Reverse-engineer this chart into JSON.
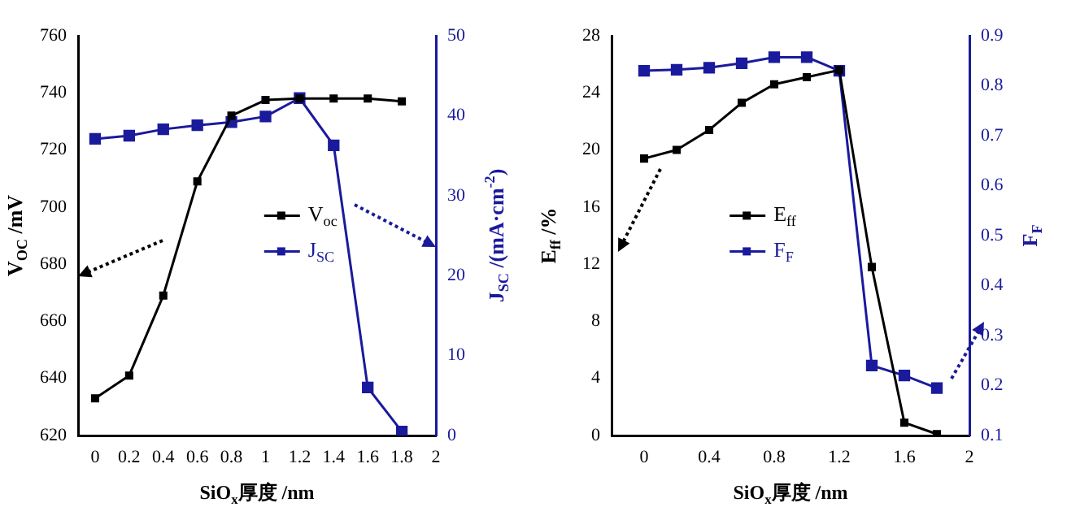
{
  "chart_data": [
    {
      "type": "line",
      "xlabel": "SiO$_{x}$厚度 /nm",
      "ylabel": "V$_{OC}$ /mV",
      "y2label": "J$_{SC}$ /(mA·cm$^{-2}$)",
      "x": [
        0,
        0.2,
        0.4,
        0.6,
        0.8,
        1.0,
        1.2,
        1.4,
        1.6,
        1.8
      ],
      "series": [
        {
          "name": "V$_{oc}$",
          "color": "#000000",
          "values": [
            633,
            641,
            669,
            709,
            732,
            737.5,
            738,
            738,
            738,
            737
          ]
        },
        {
          "name": "J$_{SC}$",
          "color": "#1a1a9c",
          "axis": "y2",
          "values": [
            37.1,
            37.5,
            38.3,
            38.8,
            39.2,
            39.9,
            42.2,
            36.3,
            6,
            0.5
          ]
        }
      ],
      "xlim": [
        -0.1,
        2.0
      ],
      "xticks": [
        0,
        0.2,
        0.4,
        0.6,
        0.8,
        1.0,
        1.2,
        1.4,
        1.6,
        1.8,
        2.0
      ],
      "ylim": [
        620,
        760
      ],
      "yticks": [
        620,
        640,
        660,
        680,
        700,
        720,
        740,
        760
      ],
      "y2lim": [
        0,
        50
      ],
      "y2ticks": [
        0,
        10,
        20,
        30,
        40,
        50
      ],
      "legend": "center",
      "marker": "square",
      "line_style": "solid",
      "grid": false
    },
    {
      "type": "line",
      "xlabel": "SiO$_{x}$厚度 /nm",
      "ylabel": "E$_{ff}$ /%",
      "y2label": "F$_{F}$",
      "x": [
        0,
        0.2,
        0.4,
        0.6,
        0.8,
        1.0,
        1.2,
        1.4,
        1.6,
        1.8
      ],
      "series": [
        {
          "name": "E$_{ff}$",
          "color": "#000000",
          "values": [
            19.4,
            20,
            21.4,
            23.3,
            24.6,
            25.1,
            25.6,
            11.8,
            0.9,
            0.1
          ]
        },
        {
          "name": "F$_{F}$",
          "color": "#1a1a9c",
          "axis": "y2",
          "values": [
            0.83,
            0.832,
            0.836,
            0.845,
            0.857,
            0.857,
            0.83,
            0.24,
            0.22,
            0.195
          ]
        }
      ],
      "xlim": [
        -0.2,
        2.0
      ],
      "xticks": [
        0,
        0.4,
        0.8,
        1.2,
        1.6,
        2.0
      ],
      "ylim": [
        0,
        28
      ],
      "yticks": [
        0,
        4,
        8,
        12,
        16,
        20,
        24,
        28
      ],
      "y2lim": [
        0.1,
        0.9
      ],
      "y2ticks": [
        0.1,
        0.2,
        0.3,
        0.4,
        0.5,
        0.6,
        0.7,
        0.8,
        0.9
      ],
      "legend": "center left",
      "marker": "square",
      "line_style": "solid",
      "grid": false
    }
  ]
}
